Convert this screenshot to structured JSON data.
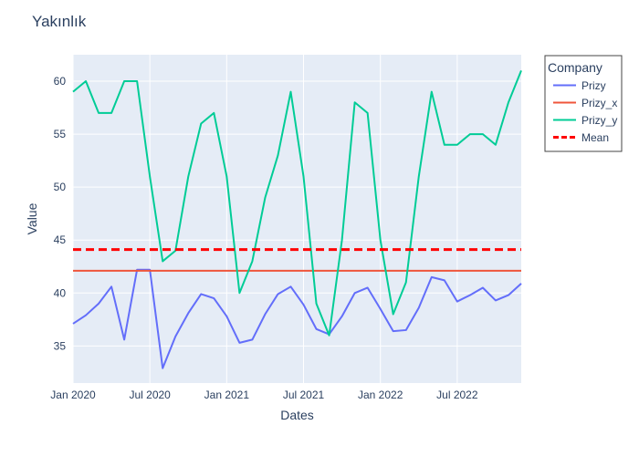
{
  "chart_data": {
    "type": "line",
    "title": "Yakınlık",
    "xlabel": "Dates",
    "ylabel": "Value",
    "x": [
      "2020-01",
      "2020-02",
      "2020-03",
      "2020-04",
      "2020-05",
      "2020-06",
      "2020-07",
      "2020-08",
      "2020-09",
      "2020-10",
      "2020-11",
      "2020-12",
      "2021-01",
      "2021-02",
      "2021-03",
      "2021-04",
      "2021-05",
      "2021-06",
      "2021-07",
      "2021-08",
      "2021-09",
      "2021-10",
      "2021-11",
      "2021-12",
      "2022-01",
      "2022-02",
      "2022-03",
      "2022-04",
      "2022-05",
      "2022-06",
      "2022-07",
      "2022-08",
      "2022-09",
      "2022-10",
      "2022-11",
      "2022-12"
    ],
    "xlim": [
      "2020-01",
      "2022-12"
    ],
    "x_tick_labels": [
      "Jan 2020",
      "Jul 2020",
      "Jan 2021",
      "Jul 2021",
      "Jan 2022",
      "Jul 2022"
    ],
    "x_tick_values": [
      "2020-01",
      "2020-07",
      "2021-01",
      "2021-07",
      "2022-01",
      "2022-07"
    ],
    "ylim": [
      31.5,
      62.5
    ],
    "y_tick_values": [
      35,
      40,
      45,
      50,
      55,
      60
    ],
    "y_tick_labels": [
      "35",
      "40",
      "45",
      "50",
      "55",
      "60"
    ],
    "grid": true,
    "legend": {
      "title": "Company",
      "placement": "right"
    },
    "series": [
      {
        "name": "Prizy",
        "color": "#636efa",
        "dash": "solid",
        "values": [
          37.1,
          37.9,
          39.0,
          40.6,
          35.6,
          42.2,
          42.2,
          32.9,
          35.9,
          38.1,
          39.9,
          39.5,
          37.8,
          35.3,
          35.6,
          38.0,
          39.9,
          40.6,
          38.9,
          36.6,
          36.1,
          37.8,
          40.0,
          40.5,
          38.5,
          36.4,
          36.5,
          38.6,
          41.5,
          41.2,
          39.2,
          39.8,
          40.5,
          39.3,
          39.8,
          40.9
        ]
      },
      {
        "name": "Prizy_x",
        "color": "#ef553b",
        "dash": "solid",
        "values": [
          42.1,
          42.1,
          42.1,
          42.1,
          42.1,
          42.1,
          42.1,
          42.1,
          42.1,
          42.1,
          42.1,
          42.1,
          42.1,
          42.1,
          42.1,
          42.1,
          42.1,
          42.1,
          42.1,
          42.1,
          42.1,
          42.1,
          42.1,
          42.1,
          42.1,
          42.1,
          42.1,
          42.1,
          42.1,
          42.1,
          42.1,
          42.1,
          42.1,
          42.1,
          42.1,
          42.1
        ]
      },
      {
        "name": "Prizy_y",
        "color": "#00cc96",
        "dash": "solid",
        "values": [
          59,
          60,
          57,
          57,
          60,
          60,
          51,
          43,
          44,
          51,
          56,
          57,
          51,
          40,
          43,
          49,
          53,
          59,
          51,
          39,
          36,
          45,
          58,
          57,
          45,
          38,
          41,
          51,
          59,
          54,
          54,
          55,
          55,
          54,
          58,
          61
        ]
      },
      {
        "name": "Mean",
        "color": "#ff0000",
        "dash": "dash",
        "values": [
          44.1,
          44.1,
          44.1,
          44.1,
          44.1,
          44.1,
          44.1,
          44.1,
          44.1,
          44.1,
          44.1,
          44.1,
          44.1,
          44.1,
          44.1,
          44.1,
          44.1,
          44.1,
          44.1,
          44.1,
          44.1,
          44.1,
          44.1,
          44.1,
          44.1,
          44.1,
          44.1,
          44.1,
          44.1,
          44.1,
          44.1,
          44.1,
          44.1,
          44.1,
          44.1,
          44.1
        ]
      }
    ]
  }
}
